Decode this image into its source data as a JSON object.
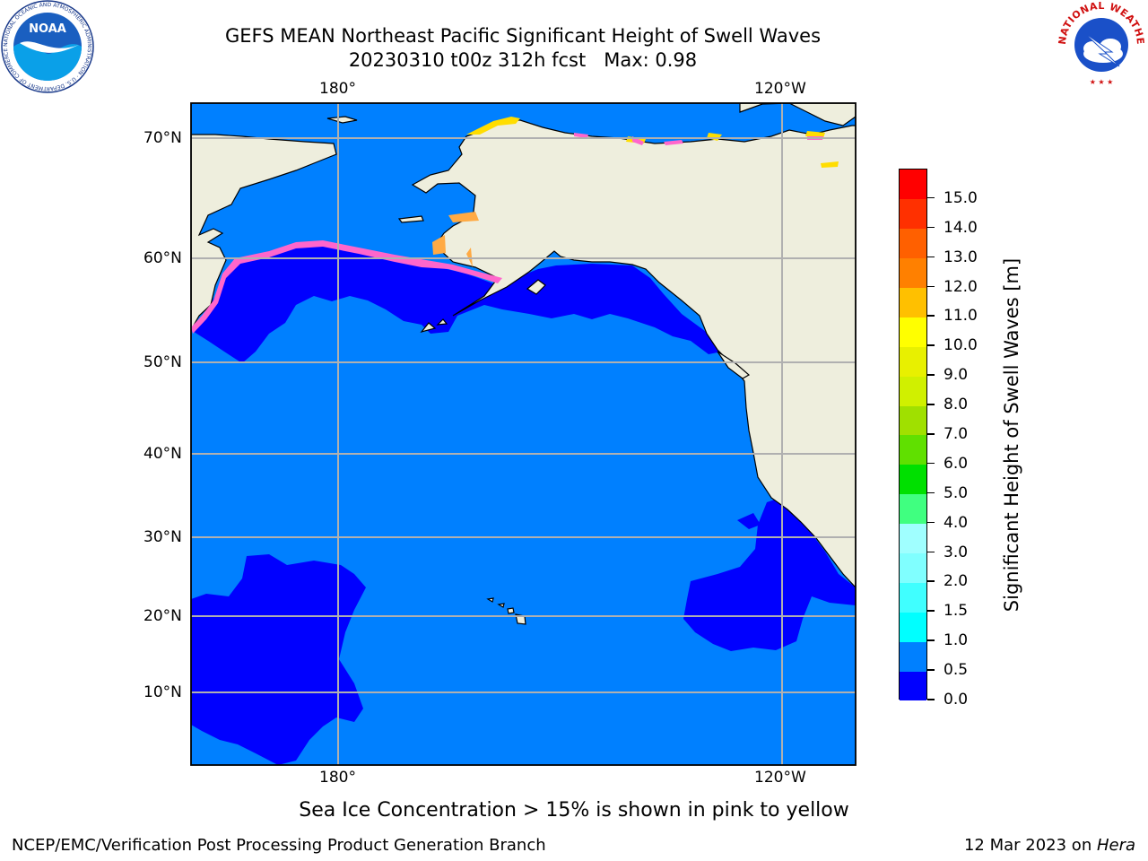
{
  "title": {
    "line1": "GEFS MEAN Northeast Pacific Significant Height of Swell Waves",
    "line2": "20230310 t00z 312h fcst   Max: 0.98"
  },
  "map": {
    "lon_labels_top": [
      "180°",
      "120°W"
    ],
    "lon_labels_bottom": [
      "180°",
      "120°W"
    ],
    "lat_labels": [
      "70°N",
      "60°N",
      "50°N",
      "40°N",
      "30°N",
      "20°N",
      "10°N"
    ],
    "colors": {
      "ocean": "#0080ff",
      "low_swell": "#0000ff",
      "land": "#eeeedd",
      "ice_pink": "#ff66cc",
      "ice_orange": "#ffaa44",
      "ice_yellow": "#ffdd00",
      "grid": "#b0b0b0",
      "coast": "#000000"
    }
  },
  "colorbar": {
    "title": "Significant Height of Swell Waves [m]",
    "tick_labels": [
      "0.0",
      "0.5",
      "1.0",
      "1.5",
      "2.0",
      "3.0",
      "4.0",
      "5.0",
      "6.0",
      "7.0",
      "8.0",
      "9.0",
      "10.0",
      "11.0",
      "12.0",
      "13.0",
      "14.0",
      "15.0"
    ],
    "colors": [
      "#0000ff",
      "#0080ff",
      "#00ffff",
      "#40ffff",
      "#80ffff",
      "#a0ffff",
      "#40ff80",
      "#00e000",
      "#60e000",
      "#a0e000",
      "#d0f000",
      "#e8f000",
      "#ffff00",
      "#ffc000",
      "#ff8000",
      "#ff6000",
      "#ff3000",
      "#ff0000"
    ]
  },
  "note": "Sea Ice Concentration > 15% is shown in pink to yellow",
  "footer": {
    "left": "NCEP/EMC/Verification Post Processing Product Generation Branch",
    "right_prefix": "12 Mar 2023 on ",
    "right_host": "Hera"
  },
  "logos": {
    "noaa": "NOAA",
    "noaa_ring": "NATIONAL OCEANIC AND ATMOSPHERIC ADMINISTRATION · U.S. DEPARTMENT OF COMMERCE",
    "nws_ring": "NATIONAL WEATHER SERVICE"
  }
}
